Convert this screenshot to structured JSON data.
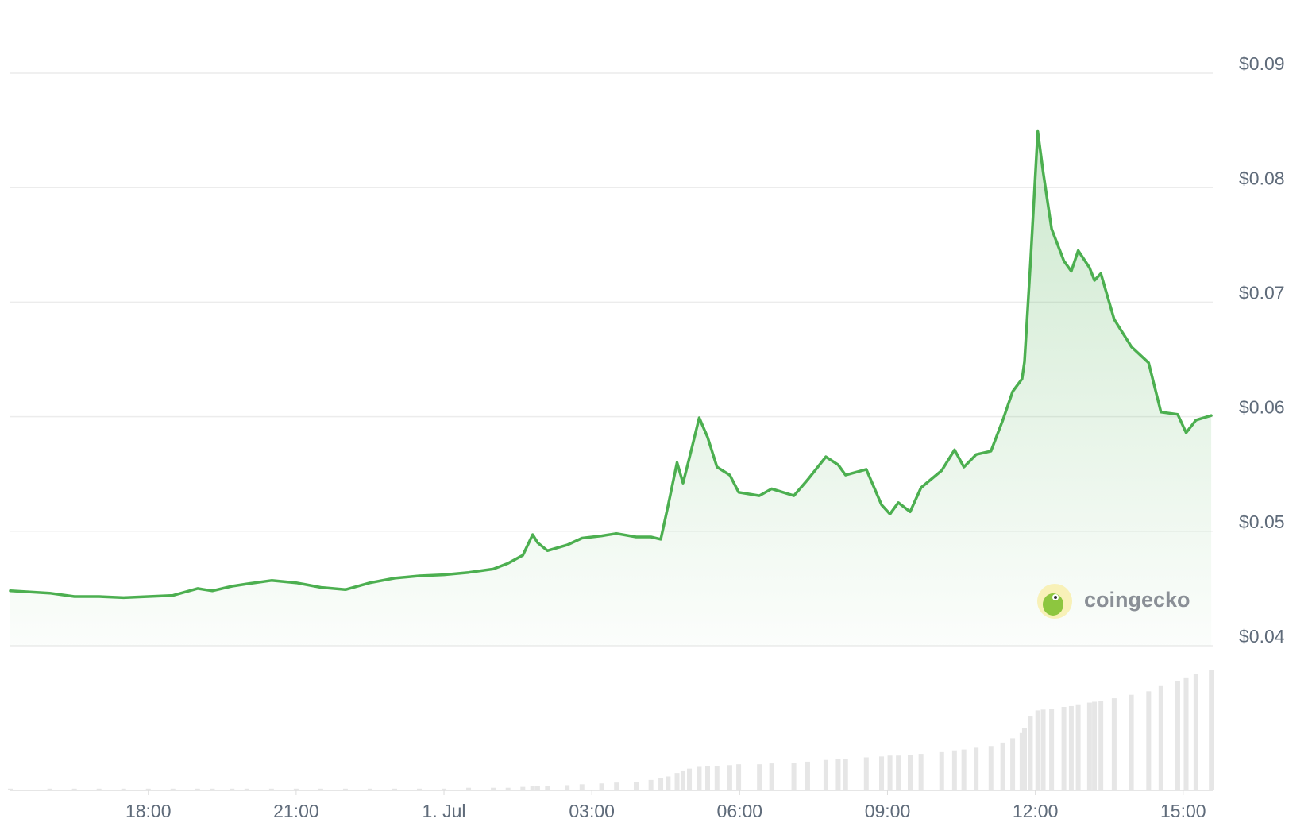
{
  "chart_data": {
    "type": "line",
    "x": [
      15.2,
      16.0,
      16.5,
      17.0,
      17.5,
      18.0,
      18.5,
      19.0,
      19.3,
      19.7,
      20.0,
      20.5,
      21.0,
      21.5,
      22.0,
      22.5,
      23.0,
      23.5,
      24.0,
      24.5,
      25.0,
      25.3,
      25.6,
      25.8,
      25.9,
      26.1,
      26.5,
      26.8,
      27.2,
      27.5,
      27.9,
      28.2,
      28.4,
      28.55,
      28.73,
      28.85,
      28.98,
      29.18,
      29.35,
      29.54,
      29.8,
      29.98,
      30.4,
      30.65,
      31.1,
      31.38,
      31.75,
      32.0,
      32.15,
      32.57,
      32.88,
      33.05,
      33.22,
      33.46,
      33.68,
      34.1,
      34.36,
      34.55,
      34.8,
      35.1,
      35.34,
      35.54,
      35.73,
      35.78,
      35.9,
      36.05,
      36.16,
      36.33,
      36.58,
      36.73,
      36.87,
      37.1,
      37.2,
      37.33,
      37.6,
      37.95,
      38.3,
      38.55,
      38.89,
      39.06,
      39.26,
      39.57
    ],
    "series": [
      {
        "color": "#4caf50",
        "values": [
          0.0448,
          0.0446,
          0.0443,
          0.0443,
          0.0442,
          0.0443,
          0.0444,
          0.045,
          0.0448,
          0.0452,
          0.0454,
          0.0457,
          0.0455,
          0.0451,
          0.0449,
          0.0455,
          0.0459,
          0.0461,
          0.0462,
          0.0464,
          0.0467,
          0.0472,
          0.0479,
          0.0497,
          0.049,
          0.0483,
          0.0488,
          0.0494,
          0.0496,
          0.0498,
          0.0495,
          0.0495,
          0.0493,
          0.0523,
          0.056,
          0.0542,
          0.0564,
          0.0599,
          0.0582,
          0.0556,
          0.0549,
          0.0534,
          0.0531,
          0.0537,
          0.0531,
          0.0545,
          0.0565,
          0.0558,
          0.0549,
          0.0554,
          0.0523,
          0.0515,
          0.0525,
          0.0517,
          0.0538,
          0.0553,
          0.0571,
          0.0556,
          0.0567,
          0.057,
          0.0597,
          0.0622,
          0.0633,
          0.0648,
          0.0733,
          0.0849,
          0.0813,
          0.0764,
          0.0736,
          0.0727,
          0.0745,
          0.073,
          0.0719,
          0.0725,
          0.0685,
          0.0661,
          0.0647,
          0.0604,
          0.0602,
          0.0586,
          0.0597,
          0.0601
        ]
      }
    ],
    "volume": {
      "color": "#e6e6e6",
      "values": [
        2,
        2,
        2,
        2,
        2,
        2,
        2,
        2,
        2,
        2,
        2,
        2,
        2,
        2,
        2,
        2,
        2,
        2,
        2,
        3,
        3,
        3,
        4,
        5,
        5,
        5,
        6,
        7,
        8,
        9,
        10,
        12,
        14,
        16,
        20,
        22,
        25,
        27,
        28,
        28,
        29,
        30,
        30,
        31,
        32,
        33,
        35,
        36,
        36,
        38,
        39,
        40,
        40,
        41,
        42,
        44,
        46,
        47,
        49,
        51,
        55,
        60,
        66,
        72,
        85,
        92,
        93,
        94,
        96,
        97,
        99,
        101,
        102,
        103,
        106,
        110,
        114,
        120,
        126,
        130,
        134,
        139
      ]
    },
    "xlim": [
      15.2,
      39.6
    ],
    "xticks": [
      {
        "value": 18,
        "label": "18:00"
      },
      {
        "value": 21,
        "label": "21:00"
      },
      {
        "value": 24,
        "label": "1. Jul"
      },
      {
        "value": 27,
        "label": "03:00"
      },
      {
        "value": 30,
        "label": "06:00"
      },
      {
        "value": 33,
        "label": "09:00"
      },
      {
        "value": 36,
        "label": "12:00"
      },
      {
        "value": 39,
        "label": "15:00"
      }
    ],
    "ylim": [
      0.04,
      0.09
    ],
    "yticks": [
      {
        "value": 0.04,
        "label": "$0.04"
      },
      {
        "value": 0.05,
        "label": "$0.05"
      },
      {
        "value": 0.06,
        "label": "$0.06"
      },
      {
        "value": 0.07,
        "label": "$0.07"
      },
      {
        "value": 0.08,
        "label": "$0.08"
      },
      {
        "value": 0.09,
        "label": "$0.09"
      }
    ],
    "grid": true,
    "watermark": "coingecko"
  }
}
